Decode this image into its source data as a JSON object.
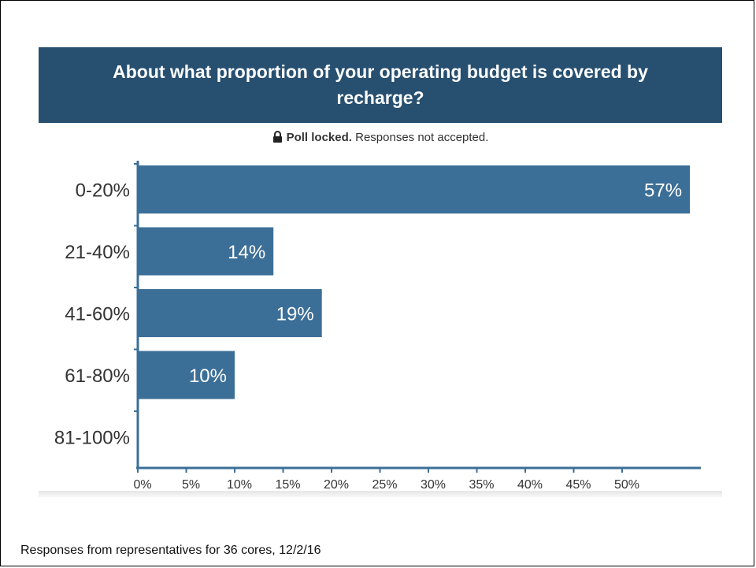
{
  "poll": {
    "title": "About what proportion of your operating budget is covered by recharge?",
    "lock_bold": "Poll locked.",
    "lock_rest": "Responses not accepted."
  },
  "footer": "Responses from representatives for 36 cores, 12/2/16",
  "colors": {
    "header": "#274f70",
    "bar": "#3c6f97",
    "axis": "#3c6f97"
  },
  "icons": {
    "lock": "lock-icon"
  },
  "chart_data": {
    "type": "bar",
    "orientation": "horizontal",
    "title": "About what proportion of your operating budget is covered by recharge?",
    "categories": [
      "0-20%",
      "21-40%",
      "41-60%",
      "61-80%",
      "81-100%"
    ],
    "values": [
      57,
      14,
      19,
      10,
      0
    ],
    "data_labels": [
      "57%",
      "14%",
      "19%",
      "10%",
      ""
    ],
    "x_ticks": [
      "0%",
      "5%",
      "10%",
      "15%",
      "20%",
      "25%",
      "30%",
      "35%",
      "40%",
      "45%",
      "50%"
    ],
    "xlim": [
      0,
      57
    ],
    "grid": false,
    "legend": "none"
  }
}
